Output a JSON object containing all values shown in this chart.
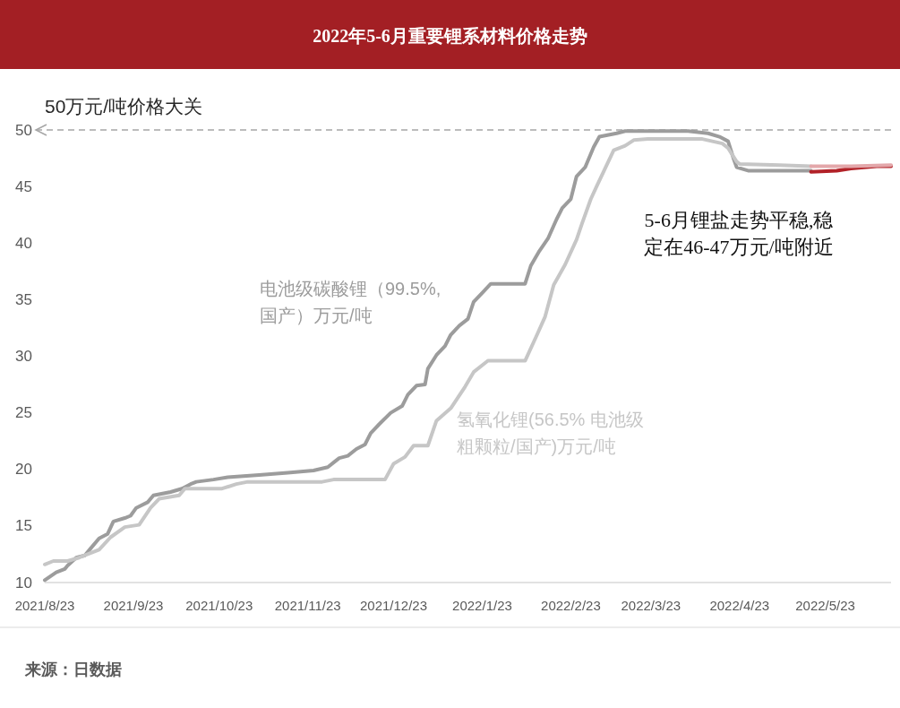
{
  "chart_data": {
    "type": "line",
    "title": "2022年5-6月重要锂系材料价格走势",
    "series": [
      {
        "name": "电池级碳酸锂（99.5%,国产）万元/吨",
        "color": "#9c9c9c",
        "x": [
          "2021-08-23",
          "2021-08-27",
          "2021-08-30",
          "2021-08-31",
          "2021-09-03",
          "2021-09-06",
          "2021-09-08",
          "2021-09-11",
          "2021-09-14",
          "2021-09-16",
          "2021-09-20",
          "2021-09-22",
          "2021-09-24",
          "2021-09-28",
          "2021-09-30",
          "2021-10-06",
          "2021-10-10",
          "2021-10-13",
          "2021-10-15",
          "2021-10-21",
          "2021-10-26",
          "2021-11-06",
          "2021-11-16",
          "2021-11-25",
          "2021-11-30",
          "2021-12-02",
          "2021-12-04",
          "2021-12-07",
          "2021-12-10",
          "2021-12-13",
          "2021-12-15",
          "2021-12-18",
          "2021-12-22",
          "2021-12-26",
          "2021-12-28",
          "2021-12-31",
          "2022-01-03",
          "2022-01-04",
          "2022-01-07",
          "2022-01-10",
          "2022-01-12",
          "2022-01-15",
          "2022-01-18",
          "2022-01-20",
          "2022-01-23",
          "2022-01-26",
          "2022-02-07",
          "2022-02-09",
          "2022-02-12",
          "2022-02-15",
          "2022-02-18",
          "2022-02-20",
          "2022-02-23",
          "2022-02-25",
          "2022-02-28",
          "2022-03-03",
          "2022-03-05",
          "2022-03-11",
          "2022-03-14",
          "2022-04-05",
          "2022-04-12",
          "2022-04-16",
          "2022-04-19",
          "2022-04-21",
          "2022-04-22",
          "2022-04-26",
          "2022-05-18"
        ],
        "values": [
          10.2,
          10.9,
          11.2,
          11.5,
          12.2,
          12.4,
          13.0,
          13.9,
          14.3,
          15.4,
          15.7,
          15.9,
          16.6,
          17.1,
          17.7,
          18.0,
          18.3,
          18.7,
          18.9,
          19.1,
          19.3,
          19.5,
          19.7,
          19.9,
          20.2,
          20.6,
          21.0,
          21.2,
          21.8,
          22.2,
          23.2,
          24.0,
          25.0,
          25.6,
          26.6,
          27.4,
          27.5,
          28.9,
          30.1,
          30.9,
          31.9,
          32.7,
          33.3,
          34.8,
          35.6,
          36.4,
          36.4,
          38.0,
          39.3,
          40.4,
          42.1,
          43.1,
          43.9,
          45.9,
          46.7,
          48.5,
          49.4,
          49.7,
          49.9,
          49.9,
          49.7,
          49.4,
          49.0,
          47.4,
          46.7,
          46.4,
          46.4
        ]
      },
      {
        "name": "氢氧化锂(56.5% 电池级粗颗粒/国产)万元/吨",
        "color": "#c6c6c6",
        "x": [
          "2021-08-23",
          "2021-08-26",
          "2021-08-31",
          "2021-09-04",
          "2021-09-08",
          "2021-09-11",
          "2021-09-15",
          "2021-09-20",
          "2021-09-25",
          "2021-09-29",
          "2021-10-02",
          "2021-10-09",
          "2021-10-11",
          "2021-10-24",
          "2021-10-29",
          "2021-11-02",
          "2021-11-28",
          "2021-12-02",
          "2021-12-20",
          "2021-12-23",
          "2021-12-27",
          "2021-12-30",
          "2022-01-04",
          "2022-01-07",
          "2022-01-12",
          "2022-01-17",
          "2022-01-20",
          "2022-01-25",
          "2022-02-07",
          "2022-02-11",
          "2022-02-14",
          "2022-02-17",
          "2022-02-21",
          "2022-02-25",
          "2022-02-27",
          "2022-03-02",
          "2022-03-04",
          "2022-03-07",
          "2022-03-10",
          "2022-03-14",
          "2022-03-17",
          "2022-03-22",
          "2022-04-10",
          "2022-04-17",
          "2022-04-19",
          "2022-04-22",
          "2022-04-23",
          "2022-05-07",
          "2022-05-18"
        ],
        "values": [
          11.6,
          11.9,
          11.9,
          12.2,
          12.6,
          12.9,
          14.0,
          14.9,
          15.1,
          16.6,
          17.4,
          17.7,
          18.3,
          18.3,
          18.7,
          18.9,
          18.9,
          19.1,
          19.1,
          20.5,
          21.1,
          22.1,
          22.1,
          24.3,
          25.4,
          27.3,
          28.6,
          29.6,
          29.6,
          31.8,
          33.5,
          36.3,
          38.1,
          40.3,
          41.8,
          43.9,
          45.0,
          46.6,
          48.2,
          48.6,
          49.1,
          49.2,
          49.2,
          48.8,
          48.4,
          47.2,
          47.0,
          46.9,
          46.8
        ]
      },
      {
        "color": "#b22228",
        "x": [
          "2022-05-18",
          "2022-05-27",
          "2022-06-01",
          "2022-06-10",
          "2022-06-15"
        ],
        "values": [
          46.3,
          46.4,
          46.6,
          46.8,
          46.8
        ]
      },
      {
        "color": "#e3a7aa",
        "x": [
          "2022-05-18",
          "2022-06-01",
          "2022-06-15"
        ],
        "values": [
          46.8,
          46.8,
          46.9
        ]
      }
    ],
    "xlim": [
      "2021-08-23",
      "2022-06-15"
    ],
    "xticks": [
      {
        "value": "2021-08-23",
        "label": "2021/8/23"
      },
      {
        "value": "2021-09-23",
        "label": "2021/9/23"
      },
      {
        "value": "2021-10-23",
        "label": "2021/10/23"
      },
      {
        "value": "2021-11-23",
        "label": "2021/11/23"
      },
      {
        "value": "2021-12-23",
        "label": "2021/12/23"
      },
      {
        "value": "2022-01-23",
        "label": "2022/1/23"
      },
      {
        "value": "2022-02-23",
        "label": "2022/2/23"
      },
      {
        "value": "2022-03-23",
        "label": "2022/3/23"
      },
      {
        "value": "2022-04-23",
        "label": "2022/4/23"
      },
      {
        "value": "2022-05-23",
        "label": "2022/5/23"
      }
    ],
    "ylim": [
      10,
      50
    ],
    "yticks": [
      10,
      15,
      20,
      25,
      30,
      35,
      40,
      45,
      50
    ],
    "ref_lines": [
      {
        "axis": "y",
        "value": 50,
        "label": "50万元/吨价格大关",
        "color": "#a6a6a6",
        "line_style": "dashed"
      }
    ],
    "annotations": [
      "5-6月锂盐走势平稳,稳定在46-47万元/吨附近",
      "来源：日数据"
    ],
    "legend": false,
    "grid": false,
    "marker": "none",
    "line_style": "solid"
  }
}
